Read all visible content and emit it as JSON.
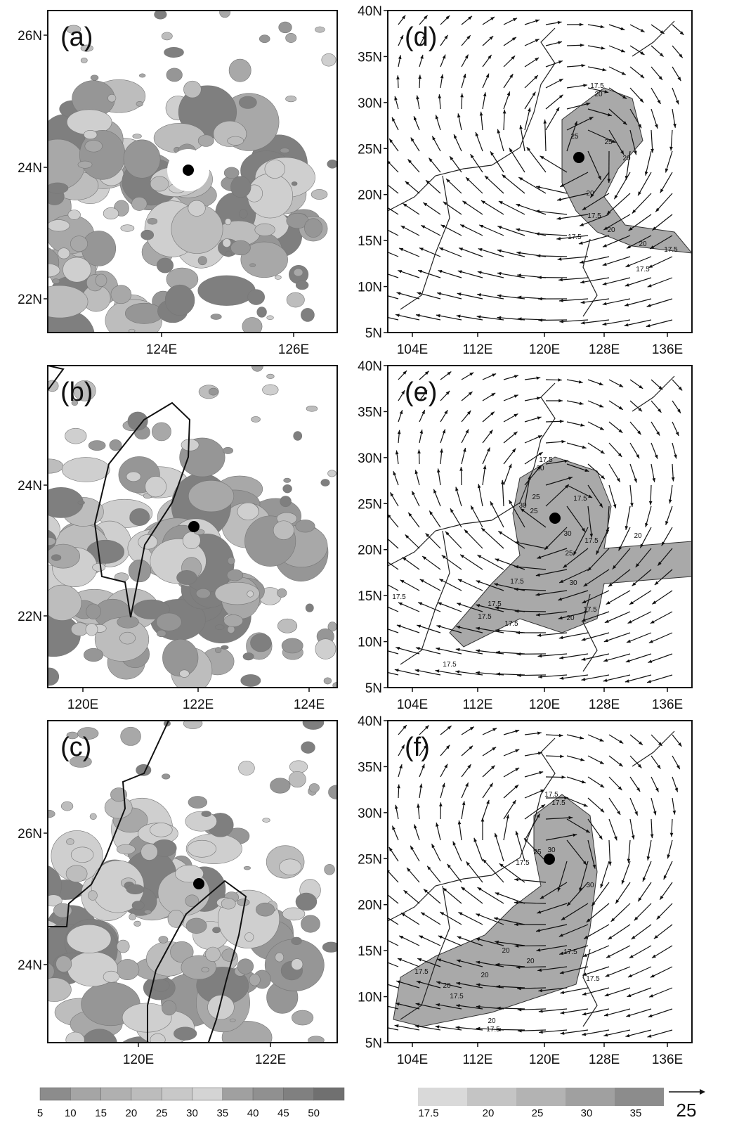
{
  "panels": [
    {
      "label": "(a)",
      "yticks": [
        "26N",
        "24N",
        "22N"
      ],
      "xticks": [
        "124E",
        "126E"
      ]
    },
    {
      "label": "(b)",
      "yticks": [
        "24N",
        "22N"
      ],
      "xticks": [
        "120E",
        "122E",
        "124E"
      ]
    },
    {
      "label": "(c)",
      "yticks": [
        "26N",
        "24N"
      ],
      "xticks": [
        "120E",
        "122E"
      ]
    },
    {
      "label": "(d)",
      "yticks": [
        "40N",
        "35N",
        "30N",
        "25N",
        "20N",
        "15N",
        "10N",
        "5N"
      ],
      "xticks": [
        "104E",
        "112E",
        "120E",
        "128E",
        "136E"
      ],
      "contour_labels": [
        "17.5",
        "20",
        "25",
        "25",
        "20",
        "20",
        "17.5",
        "20",
        "17.5",
        "20",
        "17.5",
        "17.5"
      ]
    },
    {
      "label": "(e)",
      "yticks": [
        "40N",
        "35N",
        "30N",
        "25N",
        "20N",
        "15N",
        "10N",
        "5N"
      ],
      "xticks": [
        "104E",
        "112E",
        "120E",
        "128E",
        "136E"
      ],
      "contour_labels": [
        "17.5",
        "20",
        "25",
        "17.5",
        "30",
        "25",
        "30",
        "17.5",
        "20",
        "25",
        "30",
        "17.5",
        "17.5",
        "17.5",
        "17.5",
        "17.5",
        "17.5",
        "20",
        "17.5"
      ]
    },
    {
      "label": "(f)",
      "yticks": [
        "40N",
        "35N",
        "30N",
        "25N",
        "20N",
        "15N",
        "10N",
        "5N"
      ],
      "xticks": [
        "104E",
        "112E",
        "120E",
        "128E",
        "136E"
      ],
      "contour_labels": [
        "17.5",
        "17.5",
        "30",
        "25",
        "30",
        "17.5",
        "20",
        "17.5",
        "20",
        "17.5",
        "20",
        "17.5",
        "17.5",
        "20",
        "20",
        "17.5"
      ]
    }
  ],
  "colorbars": [
    {
      "labels": [
        "5",
        "10",
        "15",
        "20",
        "25",
        "30",
        "35",
        "40",
        "45",
        "50"
      ]
    },
    {
      "labels": [
        "17.5",
        "20",
        "25",
        "30",
        "35"
      ]
    }
  ],
  "vector_reference": "25"
}
